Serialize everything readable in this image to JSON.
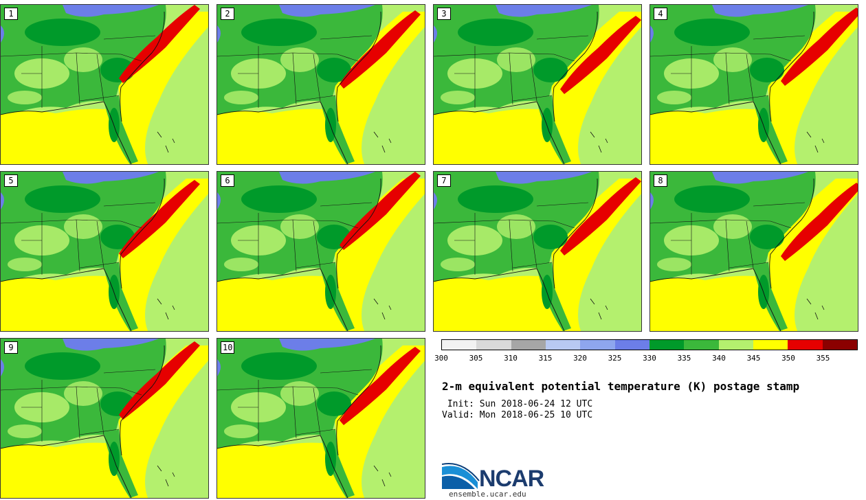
{
  "title": "2-m equivalent potential temperature (K) postage stamp",
  "init_text": " Init: Sun 2018-06-24 12 UTC",
  "valid_text": "Valid: Mon 2018-06-25 10 UTC",
  "site": "ensemble.ucar.edu",
  "logo_text": "NCAR",
  "members": [
    "1",
    "2",
    "3",
    "4",
    "5",
    "6",
    "7",
    "8",
    "9",
    "10"
  ],
  "colorbar": {
    "ticks": [
      "300",
      "305",
      "310",
      "315",
      "320",
      "325",
      "330",
      "335",
      "340",
      "345",
      "350",
      "355"
    ],
    "colors": [
      "#f2f2f2",
      "#d9d9d9",
      "#a6a6a6",
      "#b8c9f2",
      "#8ea6ee",
      "#6c7ee8",
      "#009a2a",
      "#3bb83b",
      "#b4f06e",
      "#ffff00",
      "#e60000",
      "#8b0000"
    ]
  },
  "map_colors": {
    "ocean_warm": "#ffff00",
    "ocean_mid": "#b4f06e",
    "land_dark": "#009a2a",
    "land_mid": "#3bb83b",
    "land_light": "#b4f06e",
    "cool": "#6c7ee8",
    "hot": "#e60000"
  }
}
